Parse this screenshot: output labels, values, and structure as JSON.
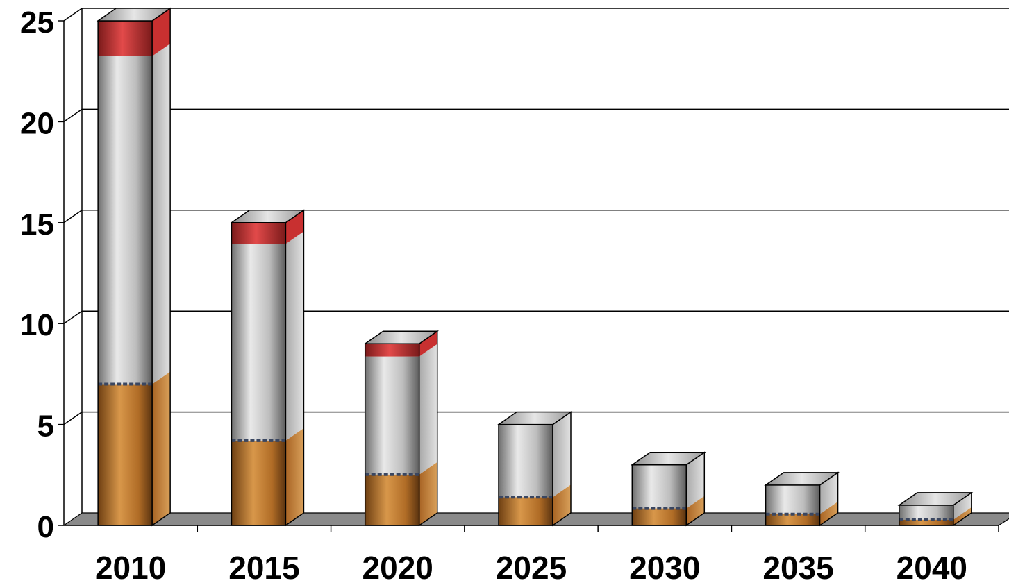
{
  "chart_data": {
    "type": "bar",
    "style": "3d-cigarette-columns",
    "title": "",
    "xlabel": "",
    "ylabel": "",
    "categories": [
      "2010",
      "2015",
      "2020",
      "2025",
      "2030",
      "2035",
      "2040"
    ],
    "values": [
      25,
      15,
      9,
      5,
      3,
      2,
      1
    ],
    "y_ticks": [
      "0",
      "5",
      "10",
      "15",
      "20",
      "25"
    ],
    "ylim": [
      0,
      25
    ],
    "grid": true,
    "legend": "none",
    "colors": {
      "tobacco_filter": "#b8752a",
      "paper": "#c4c4c4",
      "burning_tip": "#c82a2a",
      "floor": "#8a8a8a",
      "gridline": "#000000"
    }
  }
}
